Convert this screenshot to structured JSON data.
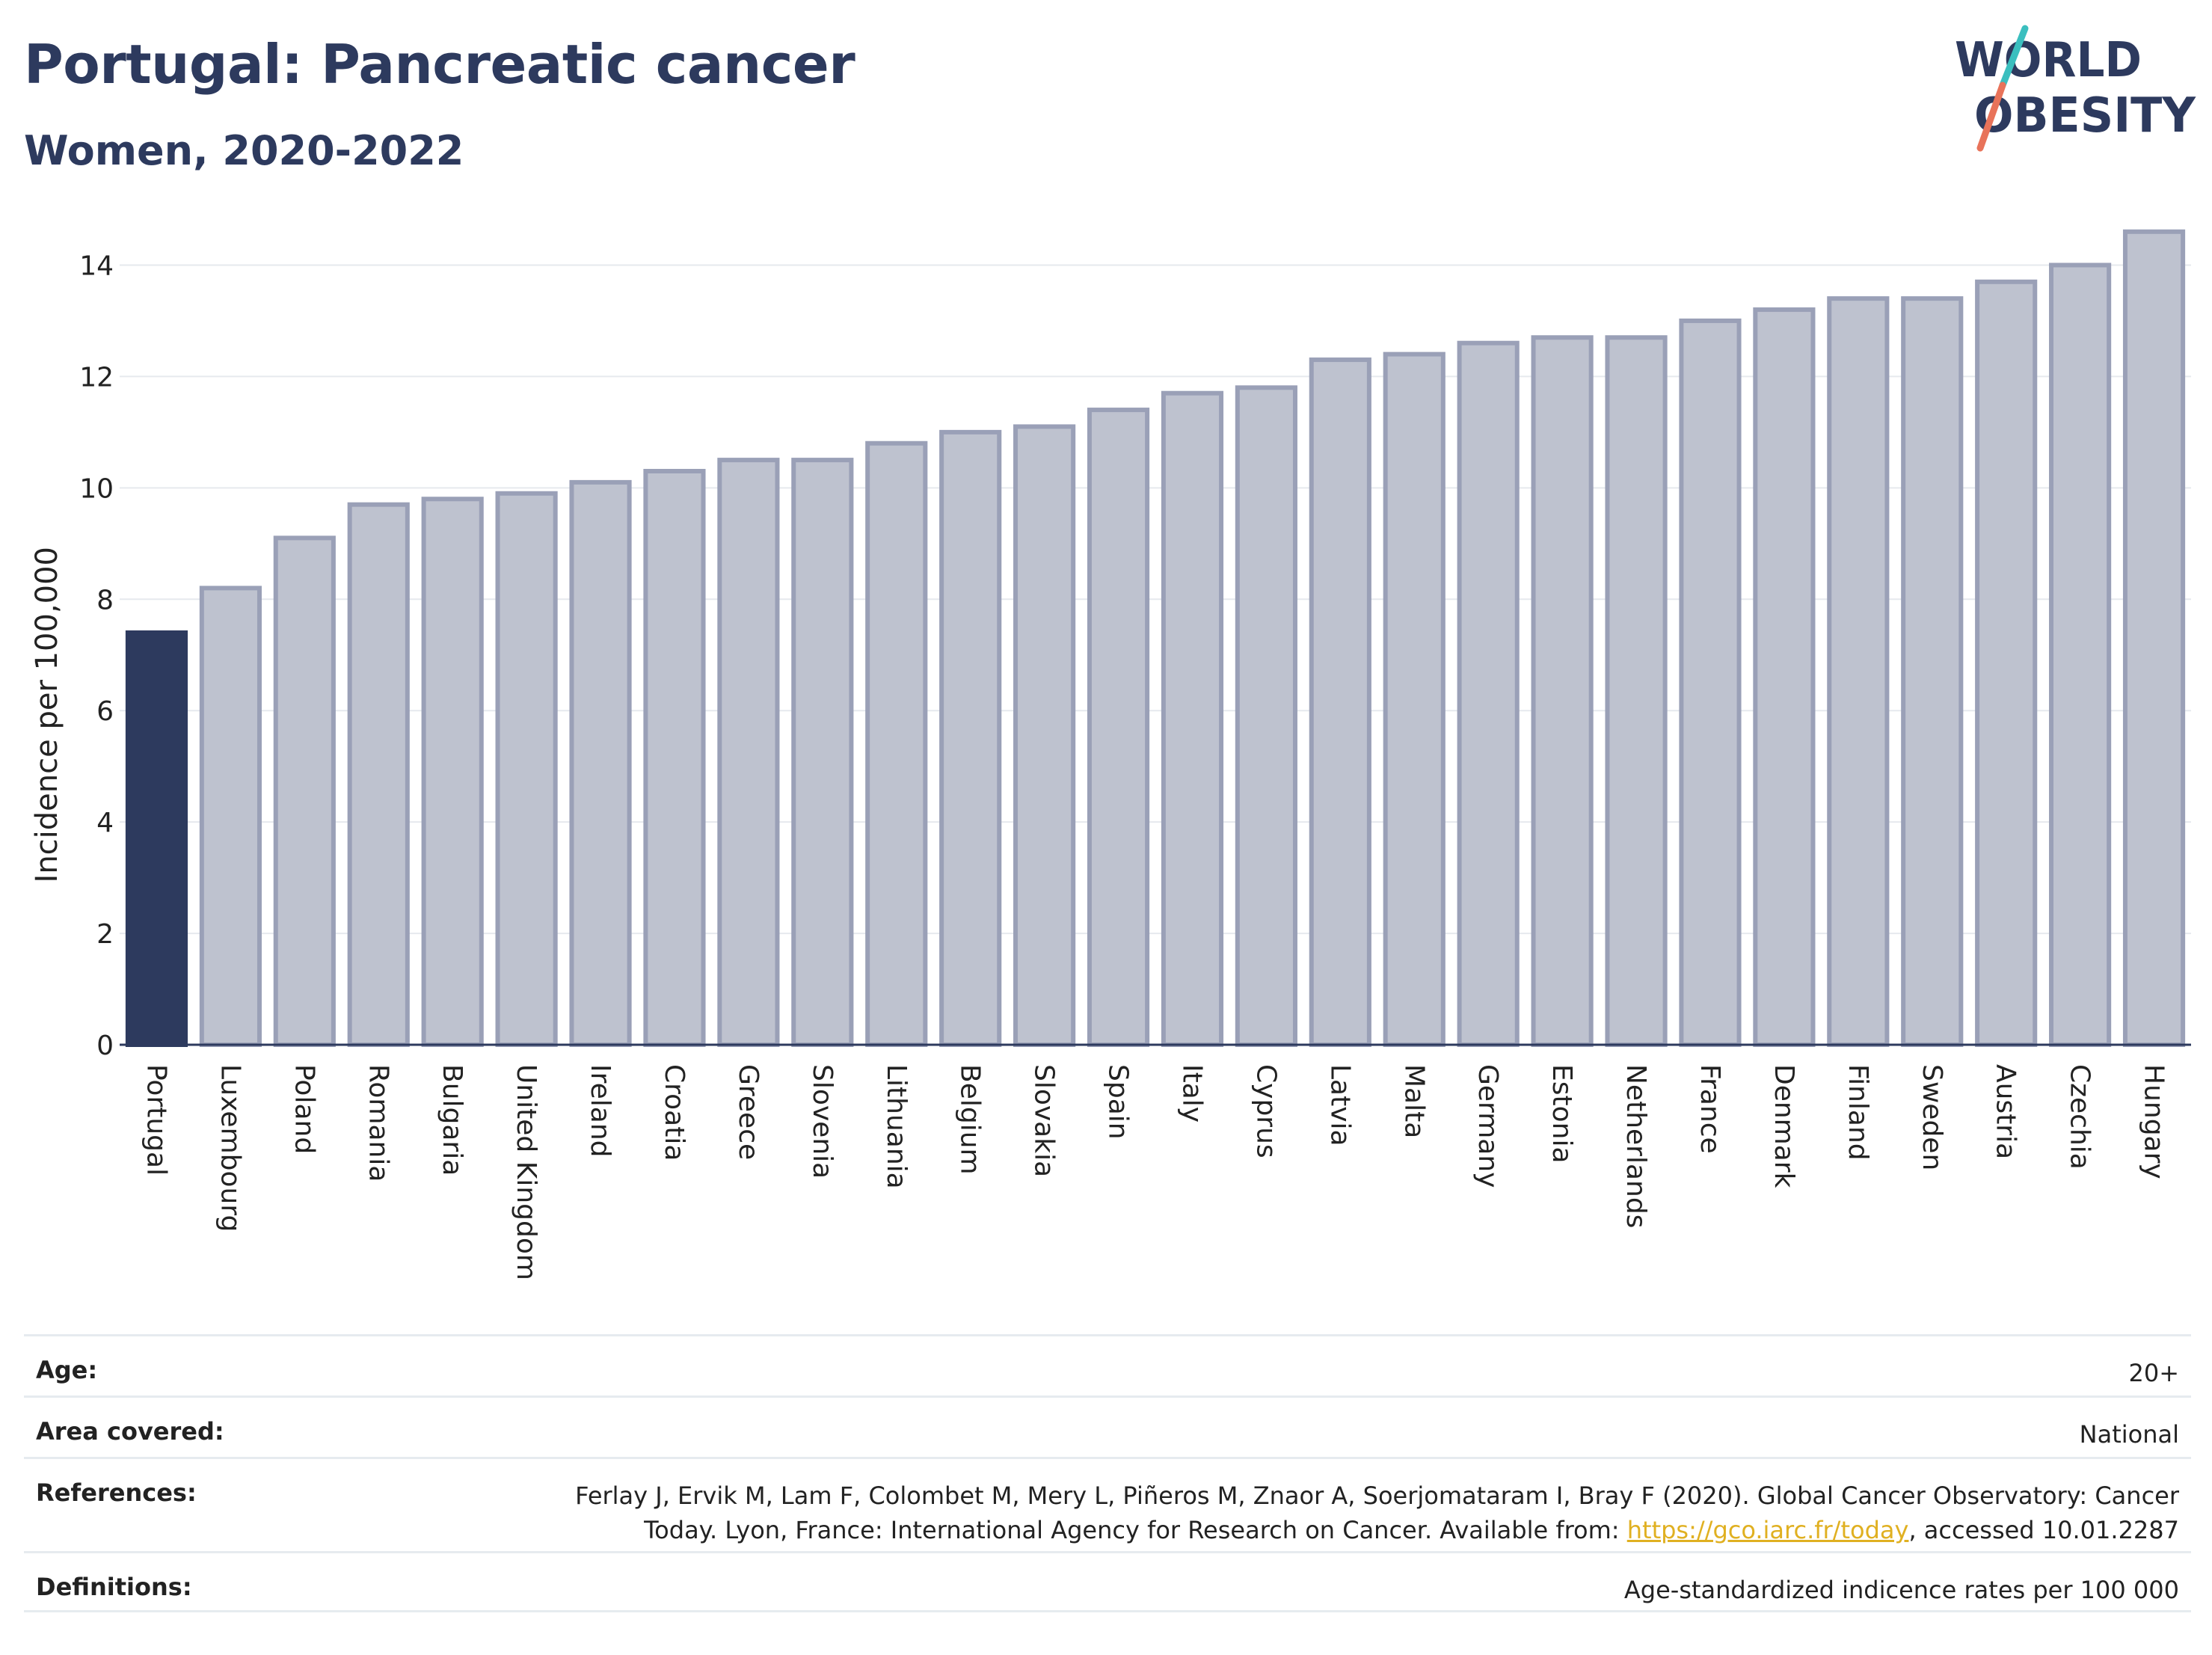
{
  "header": {
    "title": "Portugal: Pancreatic cancer",
    "subtitle": "Women, 2020-2022"
  },
  "logo": {
    "line1": "WORLD",
    "line2": "OBESITY"
  },
  "colors": {
    "highlight": "#2d3a5e",
    "bar": "#bec2cf",
    "bar_border": "#9aa0b7",
    "accent_teal": "#3bbfbf",
    "accent_coral": "#e8735a"
  },
  "chart_data": {
    "type": "bar",
    "ylabel": "Incidence per 100,000",
    "xlabel": "",
    "ylim": [
      0,
      15
    ],
    "yticks": [
      0,
      2,
      4,
      6,
      8,
      10,
      12,
      14
    ],
    "grid": true,
    "highlight_category": "Portugal",
    "categories": [
      "Portugal",
      "Luxembourg",
      "Poland",
      "Romania",
      "Bulgaria",
      "United Kingdom",
      "Ireland",
      "Croatia",
      "Greece",
      "Slovenia",
      "Lithuania",
      "Belgium",
      "Slovakia",
      "Spain",
      "Italy",
      "Cyprus",
      "Latvia",
      "Malta",
      "Germany",
      "Estonia",
      "Netherlands",
      "France",
      "Denmark",
      "Finland",
      "Sweden",
      "Austria",
      "Czechia",
      "Hungary"
    ],
    "values": [
      7.4,
      8.2,
      9.1,
      9.7,
      9.8,
      9.9,
      10.1,
      10.3,
      10.5,
      10.5,
      10.8,
      11.0,
      11.1,
      11.4,
      11.7,
      11.8,
      12.3,
      12.4,
      12.6,
      12.7,
      12.7,
      13.0,
      13.2,
      13.4,
      13.4,
      13.7,
      14.0,
      14.6
    ]
  },
  "metadata": {
    "age": {
      "label": "Age:",
      "value": "20+"
    },
    "area": {
      "label": "Area covered:",
      "value": "National"
    },
    "references": {
      "label": "References:",
      "line1": "Ferlay J, Ervik M, Lam F, Colombet M, Mery L, Piñeros M, Znaor A, Soerjomataram I, Bray F (2020). Global Cancer Observatory: Cancer",
      "line2_pre": "Today. Lyon, France: International Agency for Research on Cancer. Available from: ",
      "link": "https://gco.iarc.fr/today",
      "line2_post": ", accessed 10.01.2287"
    },
    "definitions": {
      "label": "Definitions:",
      "value": "Age-standardized indicence rates per 100 000"
    }
  }
}
